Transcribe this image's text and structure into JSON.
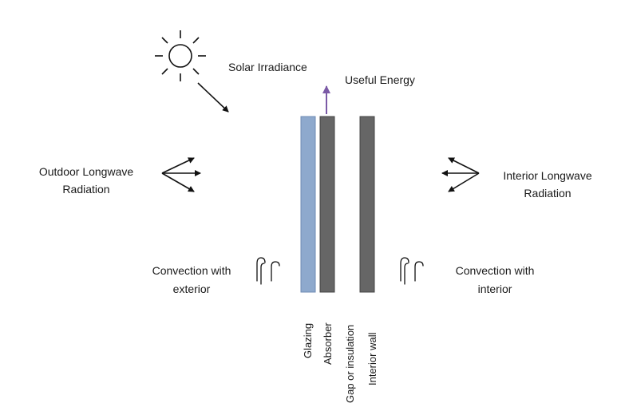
{
  "labels": {
    "solar_irradiance": "Solar Irradiance",
    "useful_energy": "Useful Energy",
    "outdoor_longwave_1": "Outdoor Longwave",
    "outdoor_longwave_2": "Radiation",
    "interior_longwave_1": "Interior Longwave",
    "interior_longwave_2": "Radiation",
    "convection_exterior_1": "Convection with",
    "convection_exterior_2": "exterior",
    "convection_interior_1": "Convection with",
    "convection_interior_2": "interior"
  },
  "layers": [
    {
      "label": "Glazing",
      "color": "#8ea9cd"
    },
    {
      "label": "Absorber",
      "color": "#666666"
    },
    {
      "label": "Gap or insulation",
      "color": null
    },
    {
      "label": "Interior wall",
      "color": "#666666"
    }
  ],
  "colors": {
    "useful_energy_arrow": "#7b5aa6",
    "arrows": "#111111"
  },
  "icons": [
    "sun-icon",
    "wind-icon"
  ],
  "caption": ""
}
